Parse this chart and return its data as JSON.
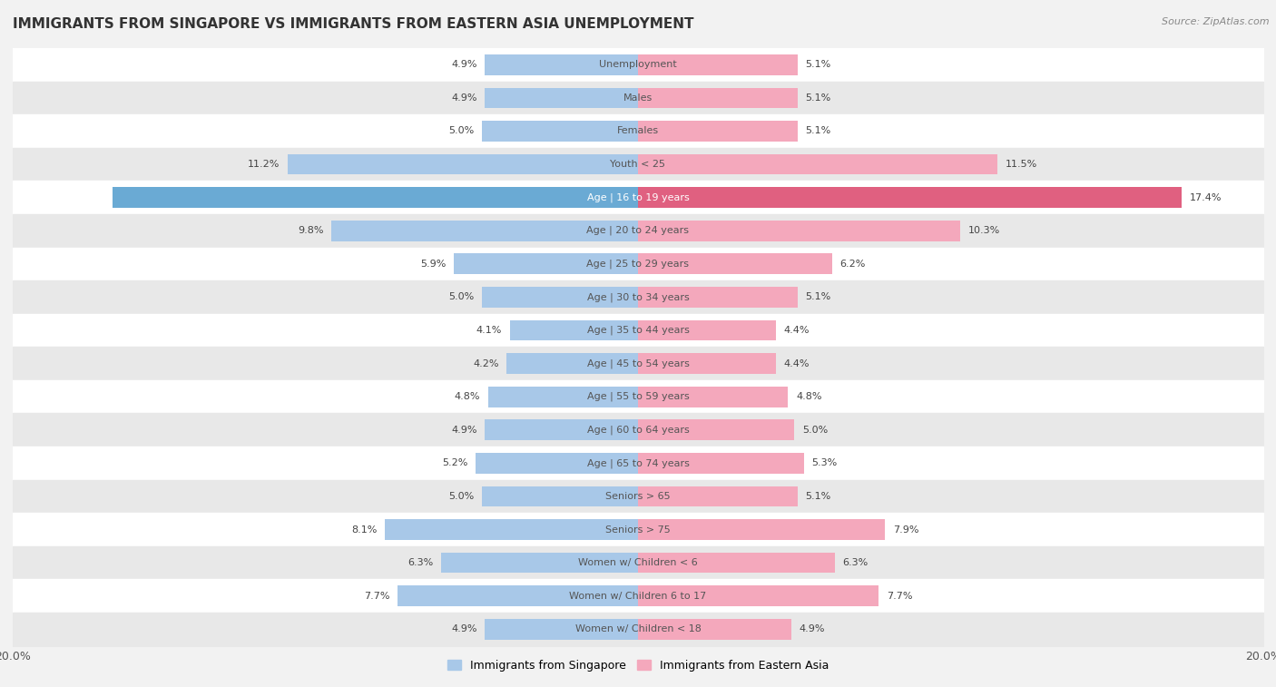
{
  "title": "IMMIGRANTS FROM SINGAPORE VS IMMIGRANTS FROM EASTERN ASIA UNEMPLOYMENT",
  "source": "Source: ZipAtlas.com",
  "categories": [
    "Unemployment",
    "Males",
    "Females",
    "Youth < 25",
    "Age | 16 to 19 years",
    "Age | 20 to 24 years",
    "Age | 25 to 29 years",
    "Age | 30 to 34 years",
    "Age | 35 to 44 years",
    "Age | 45 to 54 years",
    "Age | 55 to 59 years",
    "Age | 60 to 64 years",
    "Age | 65 to 74 years",
    "Seniors > 65",
    "Seniors > 75",
    "Women w/ Children < 6",
    "Women w/ Children 6 to 17",
    "Women w/ Children < 18"
  ],
  "singapore_values": [
    4.9,
    4.9,
    5.0,
    11.2,
    16.8,
    9.8,
    5.9,
    5.0,
    4.1,
    4.2,
    4.8,
    4.9,
    5.2,
    5.0,
    8.1,
    6.3,
    7.7,
    4.9
  ],
  "eastern_asia_values": [
    5.1,
    5.1,
    5.1,
    11.5,
    17.4,
    10.3,
    6.2,
    5.1,
    4.4,
    4.4,
    4.8,
    5.0,
    5.3,
    5.1,
    7.9,
    6.3,
    7.7,
    4.9
  ],
  "singapore_color": "#a8c8e8",
  "eastern_asia_color": "#f4a8bc",
  "highlight_singapore_color": "#6aaad4",
  "highlight_eastern_asia_color": "#e06080",
  "xlim": 20.0,
  "bar_height": 0.62,
  "background_color": "#f2f2f2",
  "row_color_even": "#ffffff",
  "row_color_odd": "#e8e8e8",
  "legend_singapore": "Immigrants from Singapore",
  "legend_eastern_asia": "Immigrants from Eastern Asia",
  "highlight_indices": [
    4
  ]
}
